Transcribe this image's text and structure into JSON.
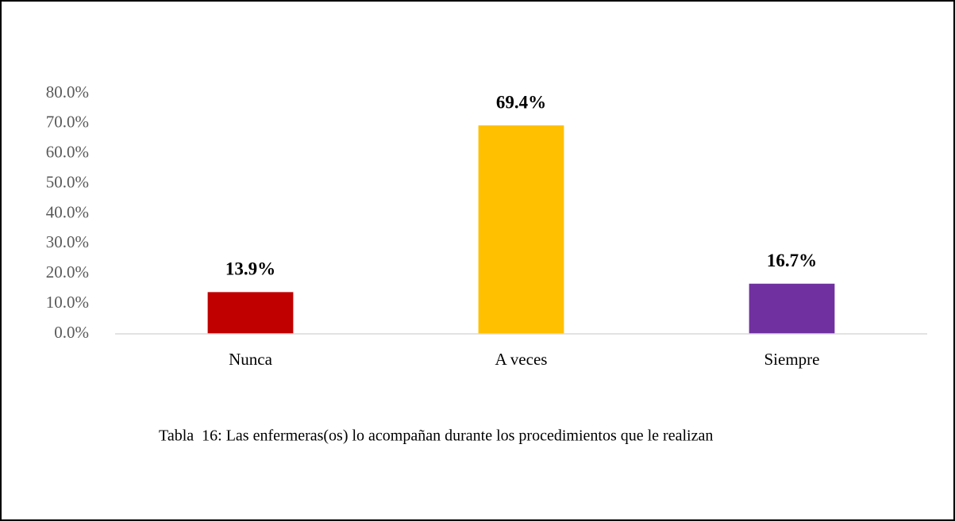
{
  "chart_data": {
    "type": "bar",
    "categories": [
      "Nunca",
      "A veces",
      "Siempre"
    ],
    "values": [
      13.9,
      69.4,
      16.7
    ],
    "value_labels": [
      "13.9%",
      "69.4%",
      "16.7%"
    ],
    "colors": [
      "#c00000",
      "#ffc000",
      "#7030a0"
    ],
    "ylim": [
      0,
      80
    ],
    "yticks": [
      {
        "value": 0,
        "label": "0.0%"
      },
      {
        "value": 10,
        "label": "10.0%"
      },
      {
        "value": 20,
        "label": "20.0%"
      },
      {
        "value": 30,
        "label": "30.0%"
      },
      {
        "value": 40,
        "label": "40.0%"
      },
      {
        "value": 50,
        "label": "50.0%"
      },
      {
        "value": 60,
        "label": "60.0%"
      },
      {
        "value": 70,
        "label": "70.0%"
      },
      {
        "value": 80,
        "label": "80.0%"
      }
    ],
    "grid": false,
    "caption": "Tabla  16: Las enfermeras(os) lo acompañan durante los procedimientos que le realizan"
  }
}
